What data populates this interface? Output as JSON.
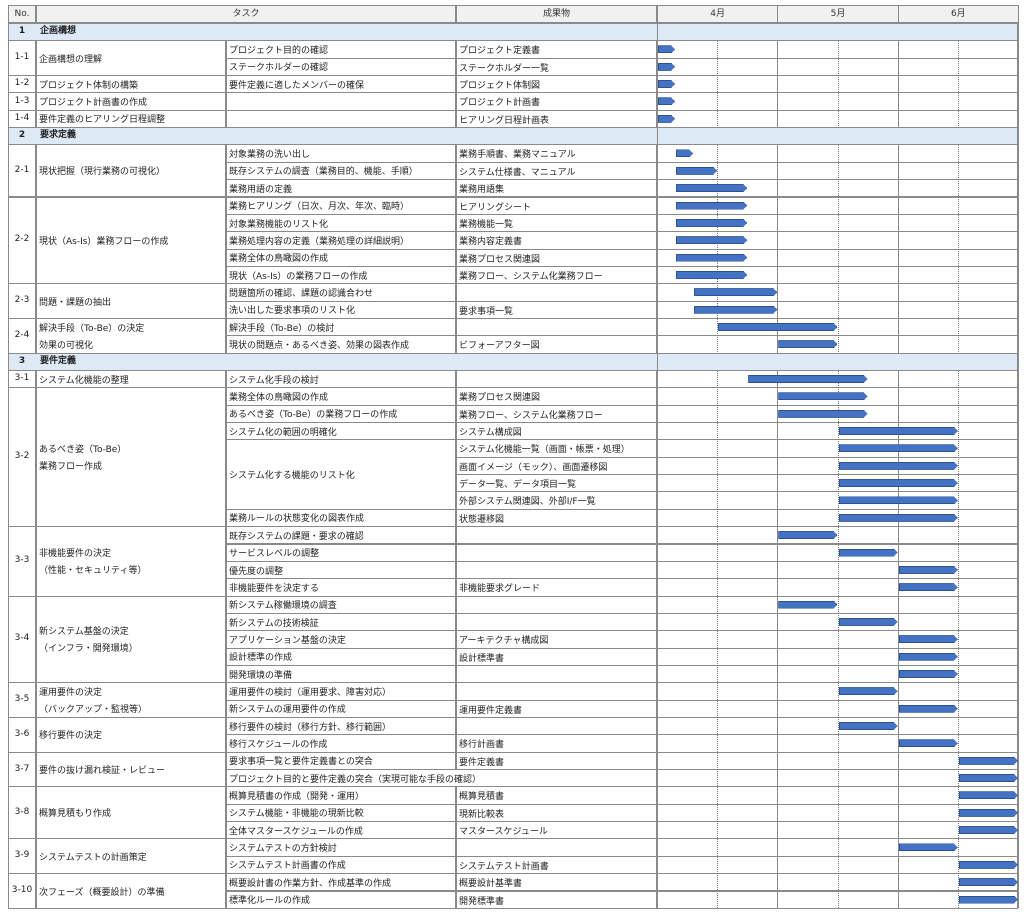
{
  "header": {
    "no": "No.",
    "task": "タスク",
    "deliverable": "成果物",
    "months": [
      "4月",
      "5月",
      "6月"
    ]
  },
  "phases": [
    {
      "no": "1",
      "title": "企画構想"
    },
    {
      "no": "2",
      "title": "要求定義"
    },
    {
      "no": "3",
      "title": "要件定義"
    }
  ],
  "groups": [
    {
      "no": "1-1",
      "name": [
        "企画構想の理解"
      ]
    },
    {
      "no": "1-2",
      "name": [
        "プロジェクト体制の構築"
      ]
    },
    {
      "no": "1-3",
      "name": [
        "プロジェクト計画書の作成"
      ]
    },
    {
      "no": "1-4",
      "name": [
        "要件定義のヒアリング日程調整"
      ]
    },
    {
      "no": "2-1",
      "name": [
        "現状把握（現行業務の可視化）"
      ]
    },
    {
      "no": "2-2",
      "name": [
        "現状（As-Is）業務フローの作成"
      ]
    },
    {
      "no": "2-3",
      "name": [
        "問題・課題の抽出"
      ]
    },
    {
      "no": "2-4",
      "name": [
        "解決手段（To-Be）の決定",
        "効果の可視化"
      ]
    },
    {
      "no": "3-1",
      "name": [
        "システム化機能の整理"
      ]
    },
    {
      "no": "3-2",
      "name": [
        "あるべき姿（To-Be）",
        "業務フロー作成"
      ]
    },
    {
      "no": "3-3",
      "name": [
        "非機能要件の決定",
        "（性能・セキュリティ等）"
      ]
    },
    {
      "no": "3-4",
      "name": [
        "新システム基盤の決定",
        "（インフラ・開発環境）"
      ]
    },
    {
      "no": "3-5",
      "name": [
        "運用要件の決定",
        "（バックアップ・監視等）"
      ]
    },
    {
      "no": "3-6",
      "name": [
        "移行要件の決定"
      ]
    },
    {
      "no": "3-7",
      "name": [
        "要件の抜け漏れ検証・レビュー"
      ]
    },
    {
      "no": "3-8",
      "name": [
        "概算見積もり作成"
      ]
    },
    {
      "no": "3-9",
      "name": [
        "システムテストの計画策定"
      ]
    },
    {
      "no": "3-10",
      "name": [
        "次フェーズ（概要設計）の準備"
      ]
    }
  ],
  "rows": [
    {
      "task": "プロジェクト目的の確認",
      "deliv": "プロジェクト定義書",
      "bar": [
        0.0,
        0.15
      ]
    },
    {
      "task": "ステークホルダーの確認",
      "deliv": "ステークホルダー一覧",
      "bar": [
        0.0,
        0.15
      ]
    },
    {
      "task": "要件定義に適したメンバーの確保",
      "deliv": "プロジェクト体制図",
      "bar": [
        0.0,
        0.15
      ]
    },
    {
      "task": "",
      "deliv": "プロジェクト計画書",
      "bar": [
        0.0,
        0.15
      ]
    },
    {
      "task": "",
      "deliv": "ヒアリング日程計画表",
      "bar": [
        0.0,
        0.15
      ]
    },
    {
      "task": "対象業務の洗い出し",
      "deliv": "業務手順書、業務マニュアル",
      "bar": [
        0.15,
        0.3
      ]
    },
    {
      "task": "既存システムの調査（業務目的、機能、手順）",
      "deliv": "システム仕様書、マニュアル",
      "bar": [
        0.15,
        0.5
      ]
    },
    {
      "task": "業務用語の定義",
      "deliv": "業務用語集",
      "bar": [
        0.15,
        0.75
      ]
    },
    {
      "task": "業務ヒアリング（日次、月次、年次、臨時）",
      "deliv": "ヒアリングシート",
      "bar": [
        0.15,
        0.75
      ]
    },
    {
      "task": "対象業務機能のリスト化",
      "deliv": "業務機能一覧",
      "bar": [
        0.15,
        0.75
      ]
    },
    {
      "task": "業務処理内容の定義（業務処理の詳細説明）",
      "deliv": "業務内容定義書",
      "bar": [
        0.15,
        0.75
      ]
    },
    {
      "task": "業務全体の鳥瞰図の作成",
      "deliv": "業務プロセス関連図",
      "bar": [
        0.15,
        0.75
      ]
    },
    {
      "task": "現状（As-Is）の業務フローの作成",
      "deliv": "業務フロー、システム化業務フロー",
      "bar": [
        0.15,
        0.75
      ]
    },
    {
      "task": "問題箇所の確認、課題の認識合わせ",
      "deliv": "",
      "bar": [
        0.3,
        1.0
      ]
    },
    {
      "task": "洗い出した要求事項のリスト化",
      "deliv": "要求事項一覧",
      "bar": [
        0.3,
        1.0
      ]
    },
    {
      "task": "解決手段（To-Be）の検討",
      "deliv": "",
      "bar": [
        0.5,
        1.5
      ]
    },
    {
      "task": "現状の問題点・あるべき姿、効果の図表作成",
      "deliv": "ビフォーアフター図",
      "bar": [
        1.0,
        1.5
      ]
    },
    {
      "task": "システム化手段の検討",
      "deliv": "",
      "bar": [
        0.75,
        1.75
      ]
    },
    {
      "task": "業務全体の鳥瞰図の作成",
      "deliv": "業務プロセス関連図",
      "bar": [
        1.0,
        1.75
      ]
    },
    {
      "task": "あるべき姿（To-Be）の業務フローの作成",
      "deliv": "業務フロー、システム化業務フロー",
      "bar": [
        1.0,
        1.75
      ]
    },
    {
      "task": "システム化の範囲の明確化",
      "deliv": "システム構成図",
      "bar": [
        1.5,
        2.5
      ]
    },
    {
      "task": "",
      "deliv": "システム化機能一覧（画面・帳票・処理）",
      "bar": [
        1.5,
        2.5
      ]
    },
    {
      "task": "",
      "deliv": "画面イメージ（モック）、画面遷移図",
      "bar": [
        1.5,
        2.5
      ]
    },
    {
      "task": "",
      "deliv": "データ一覧、データ項目一覧",
      "bar": [
        1.5,
        2.5
      ]
    },
    {
      "task": "",
      "deliv": "外部システム関連図、外部I/F一覧",
      "bar": [
        1.5,
        2.5
      ]
    },
    {
      "task": "業務ルールの状態変化の図表作成",
      "deliv": "状態遷移図",
      "bar": [
        1.5,
        2.5
      ]
    },
    {
      "task": "既存システムの課題・要求の確認",
      "deliv": "",
      "bar": [
        1.0,
        1.5
      ]
    },
    {
      "task": "サービスレベルの調整",
      "deliv": "",
      "bar": [
        1.5,
        2.0
      ]
    },
    {
      "task": "優先度の調整",
      "deliv": "",
      "bar": [
        2.0,
        2.5
      ]
    },
    {
      "task": "非機能要件を決定する",
      "deliv": "非機能要求グレード",
      "bar": [
        2.0,
        2.5
      ]
    },
    {
      "task": "新システム稼働環境の調査",
      "deliv": "",
      "bar": [
        1.0,
        1.5
      ]
    },
    {
      "task": "新システムの技術検証",
      "deliv": "",
      "bar": [
        1.5,
        2.0
      ]
    },
    {
      "task": "アプリケーション基盤の決定",
      "deliv": "アーキテクチャ構成図",
      "bar": [
        2.0,
        2.5
      ]
    },
    {
      "task": "設計標準の作成",
      "deliv": "設計標準書",
      "bar": [
        2.0,
        2.5
      ]
    },
    {
      "task": "開発環境の準備",
      "deliv": "",
      "bar": [
        2.0,
        2.5
      ]
    },
    {
      "task": "運用要件の検討（運用要求、障害対応）",
      "deliv": "",
      "bar": [
        1.5,
        2.0
      ]
    },
    {
      "task": "新システムの運用要件の作成",
      "deliv": "運用要件定義書",
      "bar": [
        2.0,
        2.5
      ]
    },
    {
      "task": "移行要件の検討（移行方針、移行範囲）",
      "deliv": "",
      "bar": [
        1.5,
        2.0
      ]
    },
    {
      "task": "移行スケジュールの作成",
      "deliv": "移行計画書",
      "bar": [
        2.0,
        2.5
      ]
    },
    {
      "task": "要求事項一覧と要件定義書との突合",
      "deliv": "要件定義書",
      "bar": [
        2.5,
        3.0
      ]
    },
    {
      "task": "プロジェクト目的と要件定義の突合（実現可能な手段の確認）",
      "deliv": "",
      "bar": [
        2.5,
        3.0
      ]
    },
    {
      "task": "概算見積書の作成（開発・運用）",
      "deliv": "概算見積書",
      "bar": [
        2.5,
        3.0
      ]
    },
    {
      "task": "システム機能・非機能の現新比較",
      "deliv": "現新比較表",
      "bar": [
        2.5,
        3.0
      ]
    },
    {
      "task": "全体マスタースケジュールの作成",
      "deliv": "マスタースケジュール",
      "bar": [
        2.5,
        3.0
      ]
    },
    {
      "task": "システムテストの方針検討",
      "deliv": "",
      "bar": [
        2.0,
        2.5
      ]
    },
    {
      "task": "システムテスト計画書の作成",
      "deliv": "システムテスト計画書",
      "bar": [
        2.5,
        3.0
      ]
    },
    {
      "task": "概要設計書の作業方針、作成基準の作成",
      "deliv": "概要設計基準書",
      "bar": [
        2.5,
        3.0
      ]
    },
    {
      "task": "標準化ルールの作成",
      "deliv": "開発標準書",
      "bar": [
        2.5,
        3.0
      ]
    }
  ]
}
